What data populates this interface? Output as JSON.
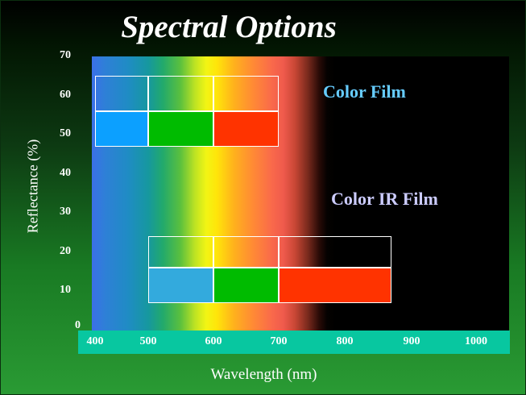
{
  "title": "Spectral Options",
  "y_axis": {
    "label": "Reflectance (%)",
    "ticks": [
      "0",
      "10",
      "20",
      "30",
      "40",
      "50",
      "60",
      "70"
    ],
    "range": [
      0,
      70
    ]
  },
  "x_axis": {
    "label": "Wavelength (nm)",
    "ticks": [
      "400",
      "500",
      "600",
      "700",
      "800",
      "900",
      "1000"
    ],
    "range": [
      400,
      1000
    ]
  },
  "films": [
    {
      "label": "Color Film",
      "label_color": "#66ccff",
      "bands": [
        {
          "range": [
            400,
            500
          ],
          "color": "#0ca0ff"
        },
        {
          "range": [
            500,
            600
          ],
          "color": "#00bb00"
        },
        {
          "range": [
            600,
            700
          ],
          "color": "#ff3300"
        }
      ],
      "reflectance": [
        47,
        65
      ],
      "split": 56
    },
    {
      "label": "Color IR Film",
      "label_color": "#ccccff",
      "bands": [
        {
          "range": [
            500,
            600
          ],
          "color": "#33aadd"
        },
        {
          "range": [
            600,
            700
          ],
          "color": "#00bb00"
        },
        {
          "range": [
            700,
            870
          ],
          "color": "#ff3300"
        }
      ],
      "reflectance": [
        7,
        24
      ],
      "split": 16
    }
  ],
  "colors": {
    "background_top": "#000000",
    "background_bottom": "#2a9b34",
    "x_axis_band": "#08c7a0"
  }
}
